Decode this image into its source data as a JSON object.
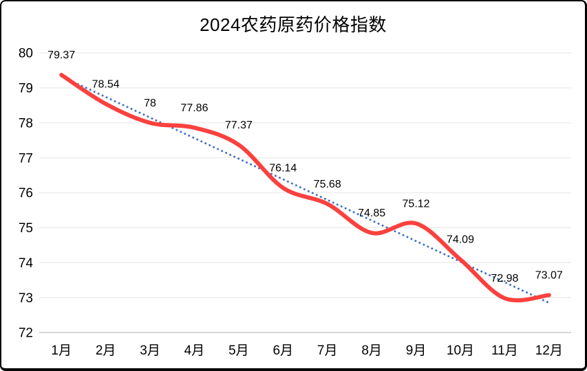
{
  "window": {
    "background": "#ffffff",
    "border_color": "#000000"
  },
  "chart_data": {
    "type": "line",
    "title": "2024农药原药价格指数",
    "categories": [
      "1月",
      "2月",
      "3月",
      "4月",
      "5月",
      "6月",
      "7月",
      "8月",
      "9月",
      "10月",
      "11月",
      "12月"
    ],
    "series": [
      {
        "values": [
          79.37,
          78.54,
          78,
          77.86,
          77.37,
          76.14,
          75.68,
          74.85,
          75.12,
          74.09,
          72.98,
          73.07
        ],
        "data_labels": [
          "79.37",
          "78.54",
          "78",
          "77.86",
          "77.37",
          "76.14",
          "75.68",
          "74.85",
          "75.12",
          "74.09",
          "72.98",
          "73.07"
        ],
        "color": "#fa413e",
        "smooth": true,
        "line_width": 6
      }
    ],
    "trendline": {
      "type": "linear",
      "style": "dotted",
      "color": "#4472c4",
      "width": 3
    },
    "xlabel": "",
    "ylabel": "",
    "ylim": [
      72,
      80
    ],
    "ytick_step": 1,
    "yticks": [
      "72",
      "73",
      "74",
      "75",
      "76",
      "77",
      "78",
      "79",
      "80"
    ],
    "grid": true,
    "legend": "none",
    "colors": {
      "gridline": "#ededed",
      "axis_line": "#d6d6d6",
      "title_text": "#000000",
      "tick_text": "#000000",
      "data_label_text": "#000000"
    }
  }
}
